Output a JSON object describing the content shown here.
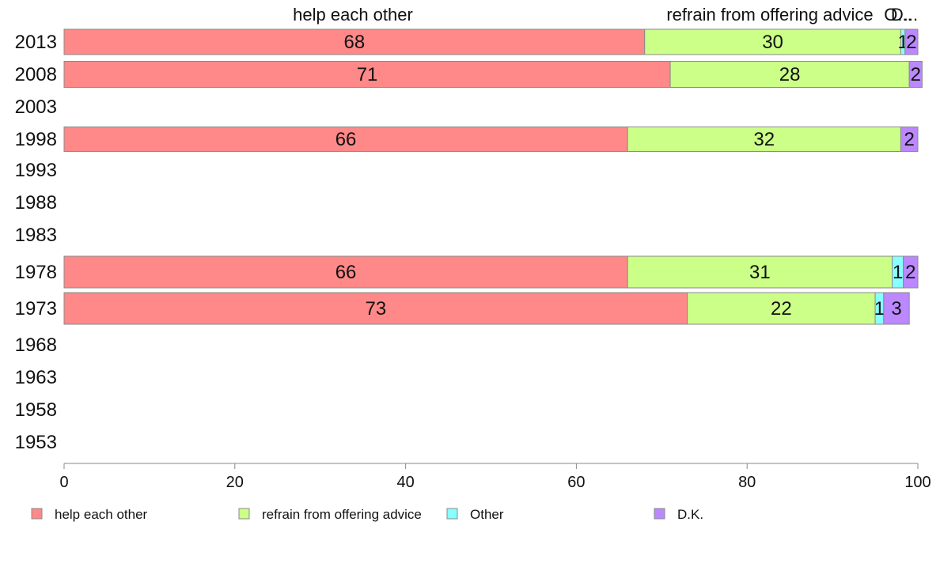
{
  "chart_data": {
    "type": "bar",
    "orientation": "horizontal",
    "stacked": true,
    "categories": [
      "2013",
      "2008",
      "2003",
      "1998",
      "1993",
      "1988",
      "1983",
      "1978",
      "1973",
      "1968",
      "1963",
      "1958",
      "1953"
    ],
    "series": [
      {
        "name": "help each other",
        "color": "#ff8888",
        "values": [
          68,
          71,
          null,
          66,
          null,
          null,
          null,
          66,
          73,
          null,
          null,
          null,
          null
        ]
      },
      {
        "name": "refrain from offering advice",
        "color": "#ccff88",
        "values": [
          30,
          28,
          null,
          32,
          null,
          null,
          null,
          31,
          22,
          null,
          null,
          null,
          null
        ]
      },
      {
        "name": "Other",
        "color": "#88ffff",
        "values": [
          0.5,
          null,
          null,
          null,
          null,
          null,
          null,
          1.3,
          1,
          null,
          null,
          null,
          null
        ]
      },
      {
        "name": "D.K.",
        "color": "#bb88ff",
        "values": [
          1.5,
          1.5,
          null,
          2,
          null,
          null,
          null,
          1.7,
          3,
          null,
          null,
          null,
          null
        ]
      }
    ],
    "data_labels": [
      [
        "68",
        "30",
        "1",
        "2"
      ],
      [
        "71",
        "28",
        "",
        "2"
      ],
      [
        "",
        "",
        "",
        ""
      ],
      [
        "66",
        "32",
        "",
        "2"
      ],
      [
        "",
        "",
        "",
        ""
      ],
      [
        "",
        "",
        "",
        ""
      ],
      [
        "",
        "",
        "",
        ""
      ],
      [
        "66",
        "31",
        "1",
        "2"
      ],
      [
        "73",
        "22",
        "1",
        "3"
      ],
      [
        "",
        "",
        "",
        ""
      ],
      [
        "",
        "",
        "",
        ""
      ],
      [
        "",
        "",
        "",
        ""
      ],
      [
        "",
        "",
        "",
        ""
      ]
    ],
    "top_labels": [
      "help each other",
      "refrain from offering advice",
      "O...",
      "D..."
    ],
    "xlim": [
      0,
      100
    ],
    "x_ticks": [
      0,
      20,
      40,
      60,
      80,
      100
    ],
    "legend_position": "bottom",
    "grid": false,
    "title": "",
    "xlabel": "",
    "ylabel": ""
  }
}
